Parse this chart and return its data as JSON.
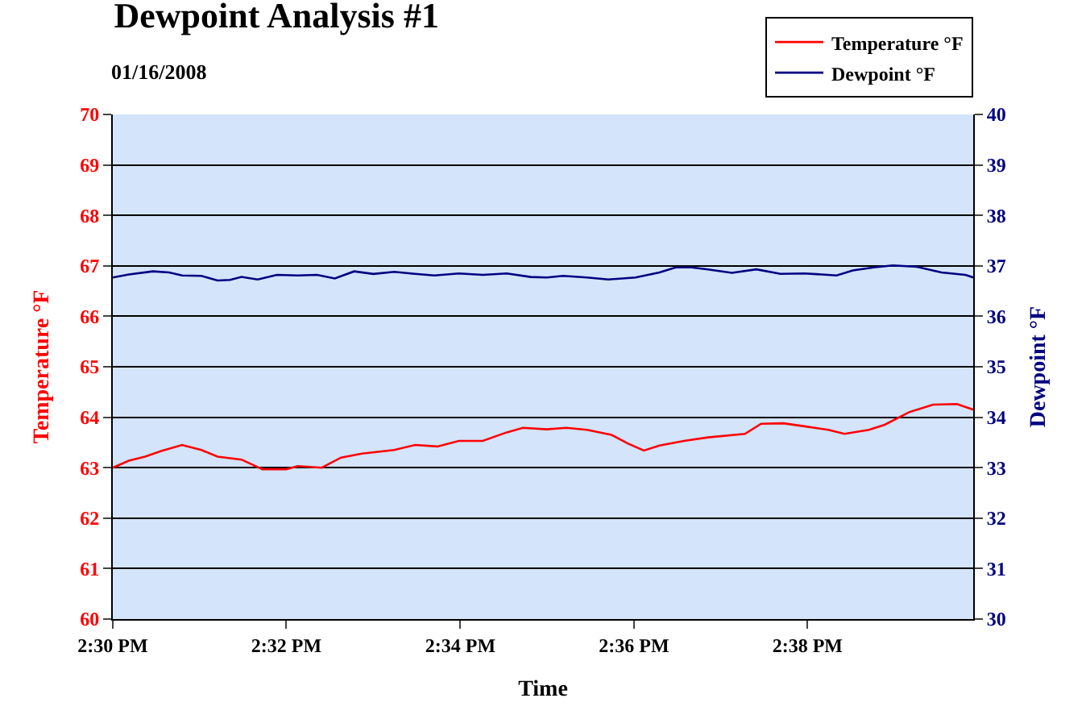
{
  "chart_data": {
    "type": "line",
    "title": "Dewpoint Analysis #1",
    "subtitle": "01/16/2008",
    "xlabel": "Time",
    "ylabel": "Temperature °F",
    "y2label": "Dewpoint °F",
    "xlim": [
      14.5,
      14.6651
    ],
    "xticks": [
      {
        "value": 14.5,
        "label": "2:30 PM"
      },
      {
        "value": 14.5333,
        "label": "2:32 PM"
      },
      {
        "value": 14.5667,
        "label": "2:34 PM"
      },
      {
        "value": 14.6,
        "label": "2:36 PM"
      },
      {
        "value": 14.6333,
        "label": "2:38 PM"
      }
    ],
    "ylim": [
      60,
      70
    ],
    "yticks": [
      60,
      61,
      62,
      63,
      64,
      65,
      66,
      67,
      68,
      69,
      70
    ],
    "y2lim": [
      30,
      40
    ],
    "y2ticks": [
      30,
      31,
      32,
      33,
      34,
      35,
      36,
      37,
      38,
      39,
      40
    ],
    "grid": "y",
    "legend": "top right",
    "marker": "none",
    "line_style": "solid",
    "series": [
      {
        "name": "Temperature °F",
        "color": "#ff0000",
        "x": [
          14.5,
          14.5031,
          14.5062,
          14.5093,
          14.5133,
          14.517,
          14.5201,
          14.5247,
          14.5287,
          14.5333,
          14.5355,
          14.5401,
          14.5438,
          14.5478,
          14.554,
          14.558,
          14.5623,
          14.5664,
          14.571,
          14.5756,
          14.5787,
          14.5833,
          14.587,
          14.591,
          14.5957,
          14.5988,
          14.6019,
          14.6049,
          14.6096,
          14.6142,
          14.6213,
          14.6244,
          14.6287,
          14.6327,
          14.6373,
          14.6404,
          14.6451,
          14.6481,
          14.6528,
          14.6574,
          14.662,
          14.6651
        ],
        "values": [
          63.0,
          63.14,
          63.22,
          63.33,
          63.45,
          63.35,
          63.22,
          63.16,
          62.97,
          62.97,
          63.03,
          63.0,
          63.2,
          63.28,
          63.35,
          63.45,
          63.42,
          63.53,
          63.53,
          63.7,
          63.79,
          63.76,
          63.79,
          63.75,
          63.65,
          63.48,
          63.34,
          63.44,
          63.53,
          63.6,
          63.67,
          63.87,
          63.88,
          63.82,
          63.75,
          63.67,
          63.75,
          63.85,
          64.1,
          64.25,
          64.26,
          64.15
        ]
      },
      {
        "name": "Dewpoint °F",
        "color": "#000080",
        "axis": "y2",
        "x": [
          14.5,
          14.5031,
          14.5077,
          14.5108,
          14.5133,
          14.517,
          14.5201,
          14.5225,
          14.5247,
          14.5278,
          14.5315,
          14.5355,
          14.5392,
          14.5426,
          14.5463,
          14.55,
          14.554,
          14.558,
          14.5617,
          14.5664,
          14.571,
          14.5756,
          14.5802,
          14.5833,
          14.5864,
          14.591,
          14.5951,
          14.6003,
          14.6049,
          14.608,
          14.6111,
          14.6142,
          14.6188,
          14.6235,
          14.6281,
          14.6327,
          14.6389,
          14.642,
          14.646,
          14.6497,
          14.6543,
          14.659,
          14.6636,
          14.6651
        ],
        "values": [
          36.77,
          36.83,
          36.89,
          36.87,
          36.81,
          36.8,
          36.71,
          36.72,
          36.78,
          36.73,
          36.82,
          36.81,
          36.82,
          36.75,
          36.89,
          36.84,
          36.88,
          36.84,
          36.81,
          36.85,
          36.82,
          36.85,
          36.78,
          36.77,
          36.8,
          36.77,
          36.73,
          36.77,
          36.87,
          36.97,
          36.97,
          36.93,
          36.86,
          36.93,
          36.84,
          36.85,
          36.81,
          36.91,
          36.97,
          37.01,
          36.98,
          36.87,
          36.82,
          36.77
        ]
      }
    ]
  }
}
